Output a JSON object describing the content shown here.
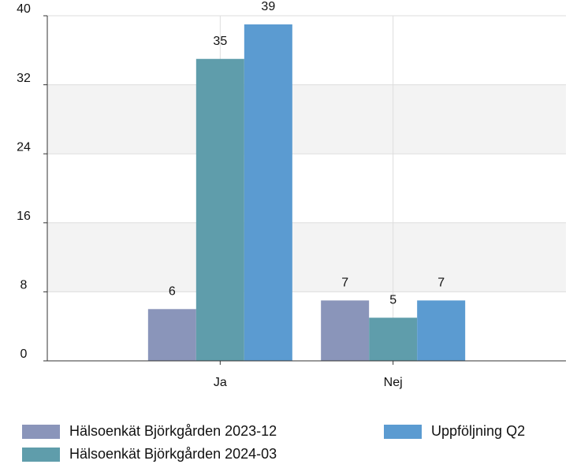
{
  "chart_data": {
    "type": "bar",
    "categories": [
      "Ja",
      "Nej"
    ],
    "series": [
      {
        "name": "Hälsoenkät Björkgården 2023-12",
        "color": "#8a95ba",
        "values": [
          6,
          7
        ]
      },
      {
        "name": "Hälsoenkät Björkgården 2024-03",
        "color": "#5f9dab",
        "values": [
          35,
          5
        ]
      },
      {
        "name": "Uppföljning Q2",
        "color": "#5b9bd1",
        "values": [
          39,
          7
        ]
      }
    ],
    "ylim": [
      0,
      40
    ],
    "yticks": [
      0,
      8,
      16,
      24,
      32,
      40
    ],
    "grid": true
  }
}
